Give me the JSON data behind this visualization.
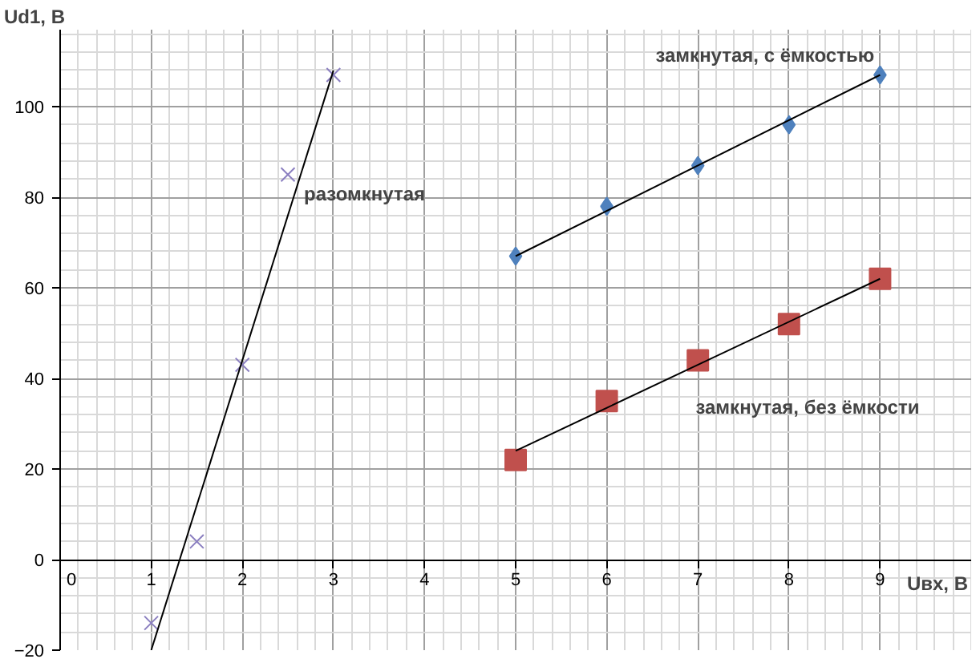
{
  "chart_data": {
    "type": "scatter",
    "xlabel": "Uвх, В",
    "ylabel": "Ud1, В",
    "xlim": [
      0,
      10
    ],
    "ylim": [
      -20,
      117
    ],
    "xticks": [
      0,
      1,
      2,
      3,
      4,
      5,
      6,
      7,
      8,
      9
    ],
    "yticks": [
      -20,
      0,
      20,
      40,
      60,
      80,
      100
    ],
    "grid": true,
    "series": [
      {
        "name": "разомкнутая",
        "marker": "cross",
        "color": "#8b7fc0",
        "x": [
          1,
          1.5,
          2,
          2.5,
          3
        ],
        "values": [
          -14,
          4,
          43,
          85,
          107
        ]
      },
      {
        "name": "замкнутая, с ёмкостью",
        "marker": "diamond",
        "color": "#4f81bd",
        "x": [
          5,
          6,
          7,
          8,
          9
        ],
        "values": [
          67,
          78,
          87,
          96,
          107
        ]
      },
      {
        "name": "замкнутая, без ёмкости",
        "marker": "square",
        "color": "#c0504d",
        "x": [
          5,
          6,
          7,
          8,
          9
        ],
        "values": [
          22,
          35,
          44,
          52,
          62
        ]
      },
      {
        "type": "line",
        "line_style": "solid",
        "color": "#000000",
        "x": [
          1,
          3
        ],
        "values": [
          -20,
          108
        ]
      },
      {
        "type": "line",
        "line_style": "solid",
        "color": "#000000",
        "x": [
          5,
          9
        ],
        "values": [
          67,
          107
        ]
      },
      {
        "type": "line",
        "line_style": "solid",
        "color": "#000000",
        "x": [
          5,
          9
        ],
        "values": [
          24,
          62
        ]
      }
    ]
  }
}
